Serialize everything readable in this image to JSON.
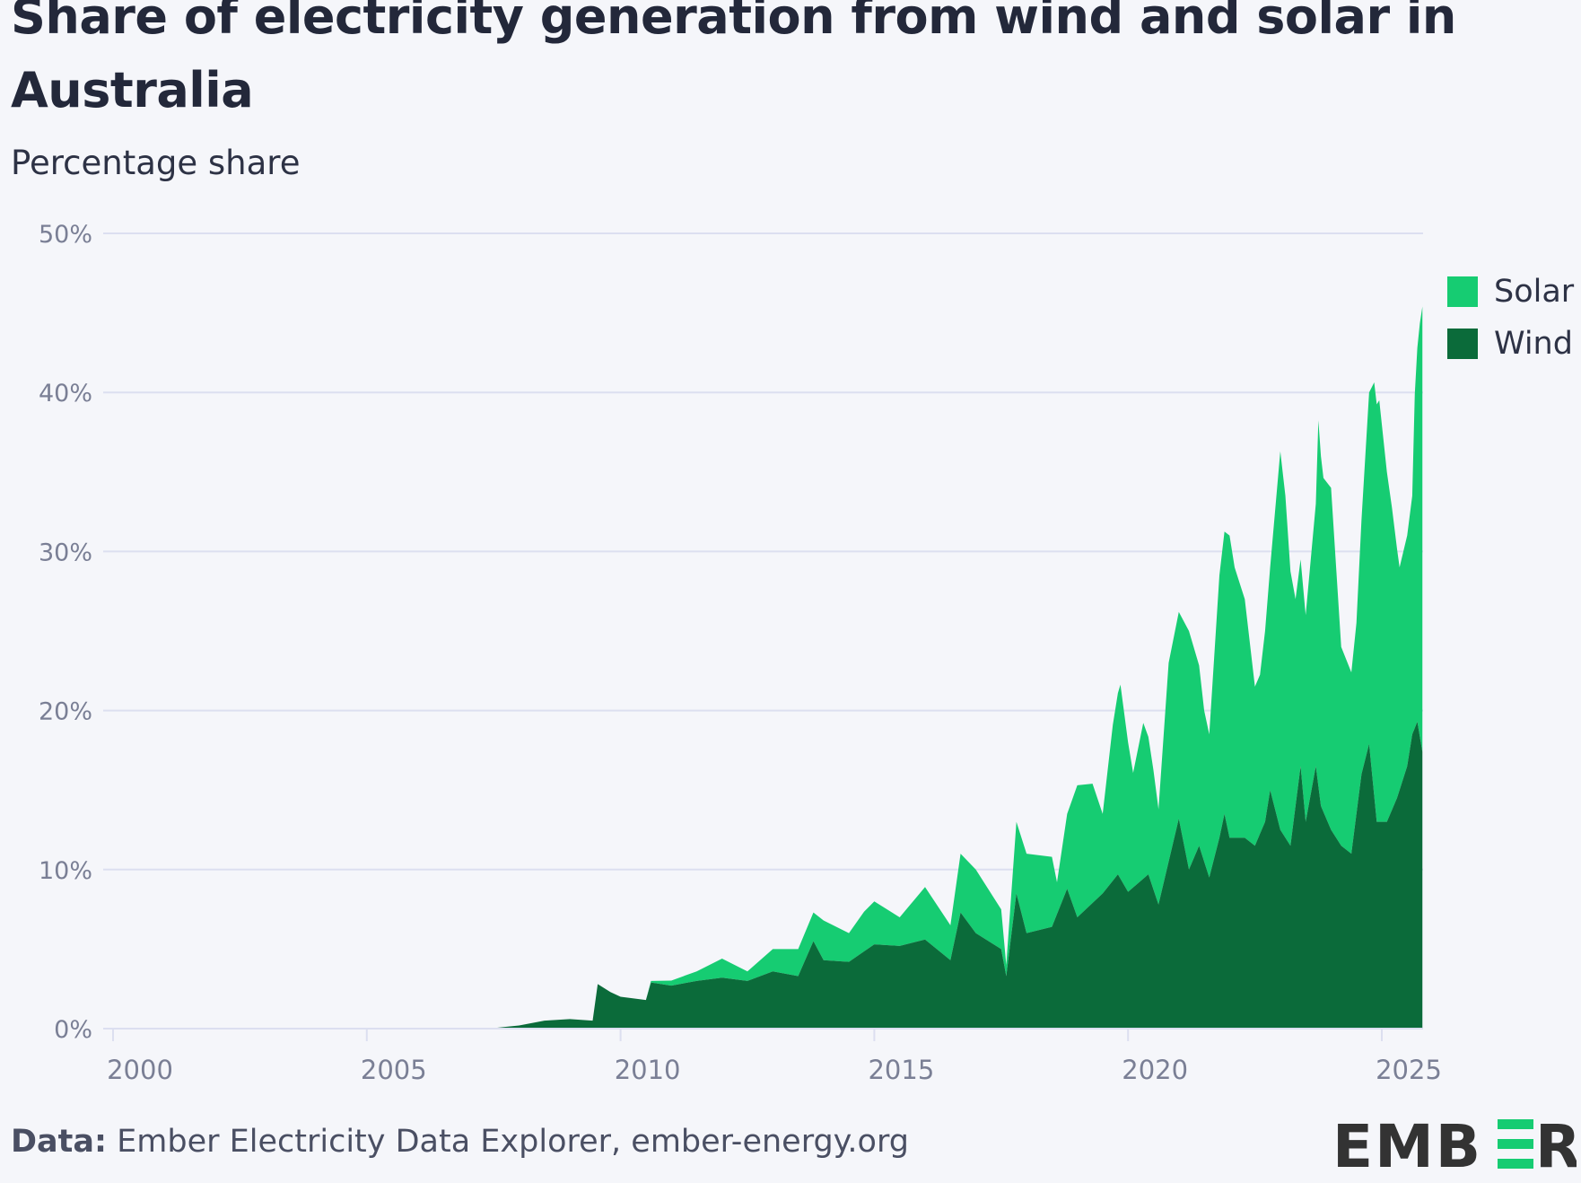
{
  "chart_data": {
    "type": "area",
    "stacked": true,
    "title": "Share of electricity generation from wind and solar in Australia",
    "subtitle": "Percentage share",
    "ylim": [
      0,
      50
    ],
    "xlim": [
      2000,
      2025.8
    ],
    "yticks": [
      "0%",
      "10%",
      "20%",
      "30%",
      "40%",
      "50%"
    ],
    "ytick_values": [
      0,
      10,
      20,
      30,
      40,
      50
    ],
    "xticks": [
      "2000",
      "2005",
      "2010",
      "2015",
      "2020",
      "2025"
    ],
    "xtick_values": [
      2000,
      2005,
      2010,
      2015,
      2020,
      2025
    ],
    "grid": true,
    "legend_position": "right",
    "series": [
      {
        "name": "Wind",
        "color": "#0b6b3a",
        "points": [
          [
            2007.4,
            0
          ],
          [
            2008,
            0.2
          ],
          [
            2008.5,
            0.5
          ],
          [
            2009,
            0.6
          ],
          [
            2009.45,
            0.5
          ],
          [
            2009.55,
            2.8
          ],
          [
            2009.8,
            2.3
          ],
          [
            2010,
            2.0
          ],
          [
            2010.5,
            1.8
          ],
          [
            2010.6,
            2.9
          ],
          [
            2011,
            2.7
          ],
          [
            2011.5,
            3.0
          ],
          [
            2012,
            3.2
          ],
          [
            2012.5,
            3.0
          ],
          [
            2013,
            3.6
          ],
          [
            2013.5,
            3.3
          ],
          [
            2013.8,
            5.5
          ],
          [
            2014,
            4.3
          ],
          [
            2014.5,
            4.2
          ],
          [
            2015,
            5.3
          ],
          [
            2015.5,
            5.2
          ],
          [
            2016,
            5.6
          ],
          [
            2016.5,
            4.3
          ],
          [
            2016.7,
            7.3
          ],
          [
            2017,
            6.0
          ],
          [
            2017.5,
            5.0
          ],
          [
            2017.6,
            3.3
          ],
          [
            2017.8,
            8.5
          ],
          [
            2018,
            6.0
          ],
          [
            2018.5,
            6.4
          ],
          [
            2018.8,
            8.8
          ],
          [
            2019,
            7.0
          ],
          [
            2019.5,
            8.5
          ],
          [
            2019.8,
            9.7
          ],
          [
            2020,
            8.6
          ],
          [
            2020.4,
            9.7
          ],
          [
            2020.6,
            7.8
          ],
          [
            2020.8,
            10.5
          ],
          [
            2021,
            13.2
          ],
          [
            2021.2,
            10
          ],
          [
            2021.4,
            11.5
          ],
          [
            2021.6,
            9.5
          ],
          [
            2021.8,
            12
          ],
          [
            2021.9,
            13.5
          ],
          [
            2022,
            12
          ],
          [
            2022.3,
            12
          ],
          [
            2022.5,
            11.5
          ],
          [
            2022.7,
            13
          ],
          [
            2022.8,
            15
          ],
          [
            2023,
            12.5
          ],
          [
            2023.2,
            11.5
          ],
          [
            2023.4,
            16.5
          ],
          [
            2023.5,
            13
          ],
          [
            2023.7,
            16.5
          ],
          [
            2023.8,
            14
          ],
          [
            2024,
            12.5
          ],
          [
            2024.2,
            11.5
          ],
          [
            2024.4,
            11
          ],
          [
            2024.6,
            16
          ],
          [
            2024.75,
            17.9
          ],
          [
            2024.9,
            13
          ],
          [
            2025.1,
            13
          ],
          [
            2025.3,
            14.5
          ],
          [
            2025.5,
            16.5
          ],
          [
            2025.6,
            18.5
          ],
          [
            2025.7,
            19.3
          ],
          [
            2025.8,
            17.4
          ]
        ]
      },
      {
        "name": "Solar",
        "color": "#16cc72",
        "points": [
          [
            2007.4,
            0
          ],
          [
            2010.5,
            0
          ],
          [
            2010.6,
            0.1
          ],
          [
            2011.5,
            0.6
          ],
          [
            2012,
            1.2
          ],
          [
            2012.5,
            0.6
          ],
          [
            2013,
            1.4
          ],
          [
            2013.5,
            1.7
          ],
          [
            2013.8,
            1.8
          ],
          [
            2014,
            2.5
          ],
          [
            2014.5,
            1.8
          ],
          [
            2014.8,
            2.5
          ],
          [
            2015,
            2.7
          ],
          [
            2015.5,
            1.8
          ],
          [
            2016,
            3.3
          ],
          [
            2016.5,
            2.2
          ],
          [
            2016.7,
            3.7
          ],
          [
            2017,
            4.0
          ],
          [
            2017.5,
            2.5
          ],
          [
            2017.6,
            0.7
          ],
          [
            2017.8,
            4.5
          ],
          [
            2018,
            5.0
          ],
          [
            2018.5,
            4.4
          ],
          [
            2018.6,
            2.0
          ],
          [
            2018.8,
            4.7
          ],
          [
            2019,
            8.3
          ],
          [
            2019.3,
            7.5
          ],
          [
            2019.5,
            5.0
          ],
          [
            2019.7,
            9.8
          ],
          [
            2019.85,
            12.2
          ],
          [
            2020,
            9.4
          ],
          [
            2020.1,
            7.2
          ],
          [
            2020.3,
            9.8
          ],
          [
            2020.5,
            7.5
          ],
          [
            2020.6,
            6.0
          ],
          [
            2020.8,
            12.5
          ],
          [
            2021,
            13
          ],
          [
            2021.2,
            15
          ],
          [
            2021.5,
            9.5
          ],
          [
            2021.6,
            9
          ],
          [
            2021.8,
            16.5
          ],
          [
            2022,
            19
          ],
          [
            2022.1,
            17
          ],
          [
            2022.3,
            15
          ],
          [
            2022.5,
            10
          ],
          [
            2022.6,
            10
          ],
          [
            2022.8,
            14
          ],
          [
            2023,
            23.8
          ],
          [
            2023.1,
            21.5
          ],
          [
            2023.3,
            13
          ],
          [
            2023.5,
            13
          ],
          [
            2023.7,
            16.5
          ],
          [
            2023.75,
            23
          ],
          [
            2023.85,
            21
          ],
          [
            2024,
            21.5
          ],
          [
            2024.2,
            12.5
          ],
          [
            2024.4,
            11.4
          ],
          [
            2024.5,
            12
          ],
          [
            2024.6,
            16
          ],
          [
            2024.75,
            22.1
          ],
          [
            2024.85,
            26
          ],
          [
            2024.95,
            26.5
          ],
          [
            2025.1,
            22
          ],
          [
            2025.2,
            19
          ],
          [
            2025.35,
            14
          ],
          [
            2025.5,
            14.5
          ],
          [
            2025.6,
            15
          ],
          [
            2025.65,
            21
          ],
          [
            2025.75,
            26
          ],
          [
            2025.8,
            28
          ]
        ]
      }
    ]
  },
  "footer": {
    "source_label": "Data:",
    "source_text": " Ember Electricity Data Explorer, ember-energy.org"
  },
  "logo": {
    "text": "EMBER",
    "accent_color": "#16cc72",
    "text_color": "#333333"
  }
}
